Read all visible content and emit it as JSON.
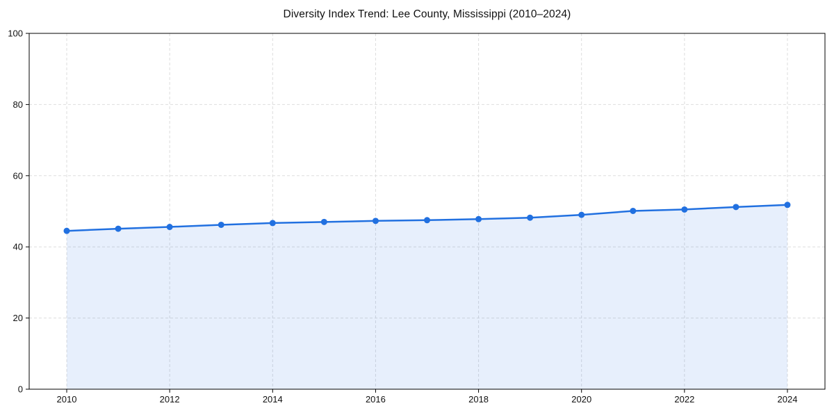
{
  "chart": {
    "colors": {
      "line": "#2170e0",
      "marker": "#2170e0",
      "area_fill": "#2170e0",
      "area_opacity": 0.11,
      "grid": "#dddddd",
      "axis_frame": "#000000",
      "tick_text": "#111111",
      "background": "#ffffff"
    }
  },
  "chart_data": {
    "type": "area",
    "title": "Diversity Index Trend: Lee County, Mississippi (2010–2024)",
    "xlabel": "",
    "ylabel": "",
    "x": [
      2010,
      2011,
      2012,
      2013,
      2014,
      2015,
      2016,
      2017,
      2018,
      2019,
      2020,
      2021,
      2022,
      2023,
      2024
    ],
    "series": [
      {
        "name": "Diversity Index",
        "values": [
          44.5,
          45.1,
          45.6,
          46.2,
          46.7,
          47.0,
          47.3,
          47.5,
          47.8,
          48.2,
          49.0,
          50.1,
          50.5,
          51.2,
          51.8
        ]
      }
    ],
    "ylim": [
      0,
      100
    ],
    "yticks": [
      0,
      20,
      40,
      60,
      80,
      100
    ],
    "xticks": [
      2010,
      2012,
      2014,
      2016,
      2018,
      2020,
      2022,
      2024
    ],
    "grid": true,
    "grid_style": "dashed",
    "legend_position": "none",
    "marker": "circle",
    "line_width": 2.5,
    "marker_radius": 4.5
  }
}
